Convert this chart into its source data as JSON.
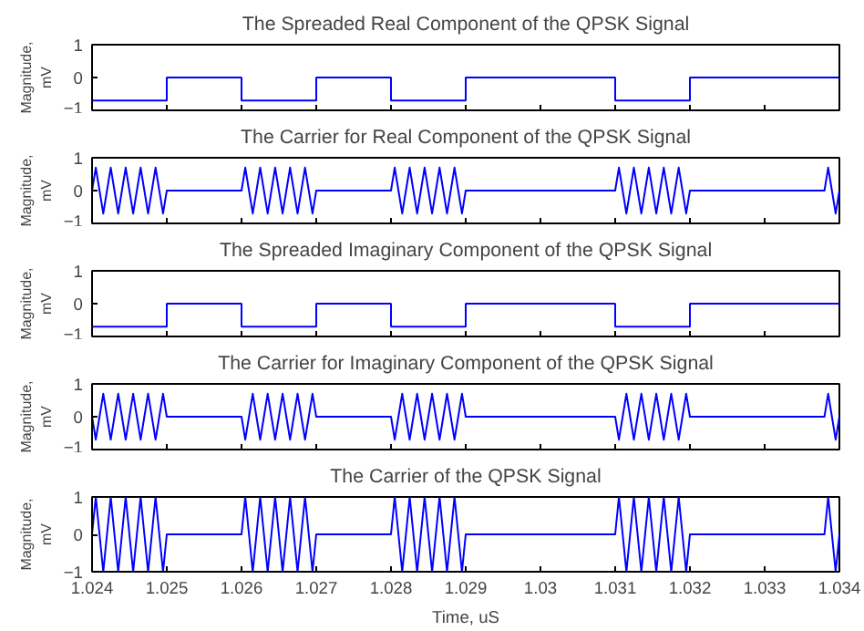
{
  "chart_data": [
    {
      "type": "step",
      "title": "The Spreaded Real Component of the QPSK Signal",
      "ylabel": "Magnitude, mV",
      "x": [
        1.024,
        1.025,
        1.026,
        1.027,
        1.028,
        1.029,
        1.031,
        1.032,
        1.034
      ],
      "values": [
        -0.7,
        0,
        -0.7,
        0,
        -0.7,
        0,
        -0.7,
        0,
        0
      ],
      "color": "#0000ff",
      "xlim": [
        1.024,
        1.034
      ],
      "ylim": [
        -1,
        1
      ],
      "xticks": [
        1.024,
        1.025,
        1.026,
        1.027,
        1.028,
        1.029,
        1.03,
        1.031,
        1.032,
        1.033,
        1.034
      ],
      "yticks": [
        -1,
        0,
        1
      ],
      "tick_labels": "y",
      "grid": false
    },
    {
      "type": "line",
      "title": "The Carrier for Real Component of the QPSK Signal",
      "ylabel": "Magnitude, mV",
      "x": [
        1.024,
        1.02405,
        1.0241,
        1.02415,
        1.0242,
        1.02425,
        1.0243,
        1.02435,
        1.0244,
        1.02445,
        1.0245,
        1.02455,
        1.0246,
        1.02465,
        1.0247,
        1.02475,
        1.0248,
        1.02485,
        1.0249,
        1.02495,
        1.025,
        1.026,
        1.02605,
        1.0261,
        1.02615,
        1.0262,
        1.02625,
        1.0263,
        1.02635,
        1.0264,
        1.02645,
        1.0265,
        1.02655,
        1.0266,
        1.02665,
        1.0267,
        1.02675,
        1.0268,
        1.02685,
        1.0269,
        1.02695,
        1.027,
        1.028,
        1.02805,
        1.0281,
        1.02815,
        1.0282,
        1.02825,
        1.0283,
        1.02835,
        1.0284,
        1.02845,
        1.0285,
        1.02855,
        1.0286,
        1.02865,
        1.0287,
        1.02875,
        1.0288,
        1.02885,
        1.0289,
        1.02895,
        1.029,
        1.031,
        1.03105,
        1.0311,
        1.03115,
        1.0312,
        1.03125,
        1.0313,
        1.03135,
        1.0314,
        1.03145,
        1.0315,
        1.03155,
        1.0316,
        1.03165,
        1.0317,
        1.03175,
        1.0318,
        1.03185,
        1.0319,
        1.03195,
        1.032,
        1.0338,
        1.03385,
        1.0339,
        1.03395,
        1.034
      ],
      "values": [
        0,
        0.7,
        0,
        -0.7,
        0,
        0.7,
        0,
        -0.7,
        0,
        0.7,
        0,
        -0.7,
        0,
        0.7,
        0,
        -0.7,
        0,
        0.7,
        0,
        -0.7,
        0,
        0,
        0.7,
        0,
        -0.7,
        0,
        0.7,
        0,
        -0.7,
        0,
        0.7,
        0,
        -0.7,
        0,
        0.7,
        0,
        -0.7,
        0,
        0.7,
        0,
        -0.7,
        0,
        0,
        0.7,
        0,
        -0.7,
        0,
        0.7,
        0,
        -0.7,
        0,
        0.7,
        0,
        -0.7,
        0,
        0.7,
        0,
        -0.7,
        0,
        0.7,
        0,
        -0.7,
        0,
        0,
        0.7,
        0,
        -0.7,
        0,
        0.7,
        0,
        -0.7,
        0,
        0.7,
        0,
        -0.7,
        0,
        0.7,
        0,
        -0.7,
        0,
        0.7,
        0,
        -0.7,
        0,
        0,
        0.7,
        0,
        -0.7,
        0
      ],
      "color": "#0000ff",
      "xlim": [
        1.024,
        1.034
      ],
      "ylim": [
        -1,
        1
      ],
      "xticks": [
        1.024,
        1.025,
        1.026,
        1.027,
        1.028,
        1.029,
        1.03,
        1.031,
        1.032,
        1.033,
        1.034
      ],
      "yticks": [
        -1,
        0,
        1
      ],
      "tick_labels": "y",
      "grid": false
    },
    {
      "type": "step",
      "title": "The Spreaded Imaginary Component of the QPSK Signal",
      "ylabel": "Magnitude, mV",
      "x": [
        1.024,
        1.025,
        1.026,
        1.027,
        1.028,
        1.029,
        1.031,
        1.032,
        1.034
      ],
      "values": [
        -0.7,
        0,
        -0.7,
        0,
        -0.7,
        0,
        -0.7,
        0,
        0
      ],
      "color": "#0000ff",
      "xlim": [
        1.024,
        1.034
      ],
      "ylim": [
        -1,
        1
      ],
      "xticks": [
        1.024,
        1.025,
        1.026,
        1.027,
        1.028,
        1.029,
        1.03,
        1.031,
        1.032,
        1.033,
        1.034
      ],
      "yticks": [
        -1,
        0,
        1
      ],
      "tick_labels": "y",
      "grid": false
    },
    {
      "type": "line",
      "title": "The Carrier for Imaginary Component of the QPSK Signal",
      "ylabel": "Magnitude, mV",
      "x": [
        1.024,
        1.02405,
        1.0241,
        1.02415,
        1.0242,
        1.02425,
        1.0243,
        1.02435,
        1.0244,
        1.02445,
        1.0245,
        1.02455,
        1.0246,
        1.02465,
        1.0247,
        1.02475,
        1.0248,
        1.02485,
        1.0249,
        1.02495,
        1.025,
        1.026,
        1.02605,
        1.0261,
        1.02615,
        1.0262,
        1.02625,
        1.0263,
        1.02635,
        1.0264,
        1.02645,
        1.0265,
        1.02655,
        1.0266,
        1.02665,
        1.0267,
        1.02675,
        1.0268,
        1.02685,
        1.0269,
        1.02695,
        1.027,
        1.028,
        1.02805,
        1.0281,
        1.02815,
        1.0282,
        1.02825,
        1.0283,
        1.02835,
        1.0284,
        1.02845,
        1.0285,
        1.02855,
        1.0286,
        1.02865,
        1.0287,
        1.02875,
        1.0288,
        1.02885,
        1.0289,
        1.02895,
        1.029,
        1.031,
        1.03105,
        1.0311,
        1.03115,
        1.0312,
        1.03125,
        1.0313,
        1.03135,
        1.0314,
        1.03145,
        1.0315,
        1.03155,
        1.0316,
        1.03165,
        1.0317,
        1.03175,
        1.0318,
        1.03185,
        1.0319,
        1.03195,
        1.032,
        1.0338,
        1.03385,
        1.0339,
        1.03395,
        1.034
      ],
      "values": [
        0,
        -0.7,
        0,
        0.7,
        0,
        -0.7,
        0,
        0.7,
        0,
        -0.7,
        0,
        0.7,
        0,
        -0.7,
        0,
        0.7,
        0,
        -0.7,
        0,
        0.7,
        0,
        0,
        -0.7,
        0,
        0.7,
        0,
        -0.7,
        0,
        0.7,
        0,
        -0.7,
        0,
        0.7,
        0,
        -0.7,
        0,
        0.7,
        0,
        -0.7,
        0,
        0.7,
        0,
        0,
        -0.7,
        0,
        0.7,
        0,
        -0.7,
        0,
        0.7,
        0,
        -0.7,
        0,
        0.7,
        0,
        -0.7,
        0,
        0.7,
        0,
        -0.7,
        0,
        0.7,
        0,
        0,
        -0.7,
        0,
        0.7,
        0,
        -0.7,
        0,
        0.7,
        0,
        -0.7,
        0,
        0.7,
        0,
        -0.7,
        0,
        0.7,
        0,
        -0.7,
        0,
        0.7,
        0,
        0,
        0.7,
        0,
        -0.7,
        0
      ],
      "color": "#0000ff",
      "xlim": [
        1.024,
        1.034
      ],
      "ylim": [
        -1,
        1
      ],
      "xticks": [
        1.024,
        1.025,
        1.026,
        1.027,
        1.028,
        1.029,
        1.03,
        1.031,
        1.032,
        1.033,
        1.034
      ],
      "yticks": [
        -1,
        0,
        1
      ],
      "tick_labels": "y",
      "grid": false
    },
    {
      "type": "line",
      "title": "The Carrier of the QPSK Signal",
      "xlabel": "Time, uS",
      "ylabel": "Magnitude, mV",
      "x": [
        1.024,
        1.02405,
        1.0241,
        1.02415,
        1.0242,
        1.02425,
        1.0243,
        1.02435,
        1.0244,
        1.02445,
        1.0245,
        1.02455,
        1.0246,
        1.02465,
        1.0247,
        1.02475,
        1.0248,
        1.02485,
        1.0249,
        1.02495,
        1.025,
        1.026,
        1.02605,
        1.0261,
        1.02615,
        1.0262,
        1.02625,
        1.0263,
        1.02635,
        1.0264,
        1.02645,
        1.0265,
        1.02655,
        1.0266,
        1.02665,
        1.0267,
        1.02675,
        1.0268,
        1.02685,
        1.0269,
        1.02695,
        1.027,
        1.028,
        1.02805,
        1.0281,
        1.02815,
        1.0282,
        1.02825,
        1.0283,
        1.02835,
        1.0284,
        1.02845,
        1.0285,
        1.02855,
        1.0286,
        1.02865,
        1.0287,
        1.02875,
        1.0288,
        1.02885,
        1.0289,
        1.02895,
        1.029,
        1.031,
        1.03105,
        1.0311,
        1.03115,
        1.0312,
        1.03125,
        1.0313,
        1.03135,
        1.0314,
        1.03145,
        1.0315,
        1.03155,
        1.0316,
        1.03165,
        1.0317,
        1.03175,
        1.0318,
        1.03185,
        1.0319,
        1.03195,
        1.032,
        1.0338,
        1.03385,
        1.0339,
        1.03395,
        1.034
      ],
      "values": [
        0,
        1,
        0,
        -1,
        0,
        1,
        0,
        -1,
        0,
        1,
        0,
        -1,
        0,
        1,
        0,
        -1,
        0,
        1,
        0,
        -1,
        0,
        0,
        1,
        0,
        -1,
        0,
        1,
        0,
        -1,
        0,
        1,
        0,
        -1,
        0,
        1,
        0,
        -1,
        0,
        1,
        0,
        -1,
        0,
        0,
        1,
        0,
        -1,
        0,
        1,
        0,
        -1,
        0,
        1,
        0,
        -1,
        0,
        1,
        0,
        -1,
        0,
        1,
        0,
        -1,
        0,
        0,
        1,
        0,
        -1,
        0,
        1,
        0,
        -1,
        0,
        1,
        0,
        -1,
        0,
        1,
        0,
        -1,
        0,
        1,
        0,
        -1,
        0,
        0,
        1,
        0,
        -1,
        0
      ],
      "color": "#0000ff",
      "xlim": [
        1.024,
        1.034
      ],
      "ylim": [
        -1,
        1
      ],
      "xticks": [
        1.024,
        1.025,
        1.026,
        1.027,
        1.028,
        1.029,
        1.03,
        1.031,
        1.032,
        1.033,
        1.034
      ],
      "yticks": [
        -1,
        0,
        1
      ],
      "grid": false
    }
  ]
}
